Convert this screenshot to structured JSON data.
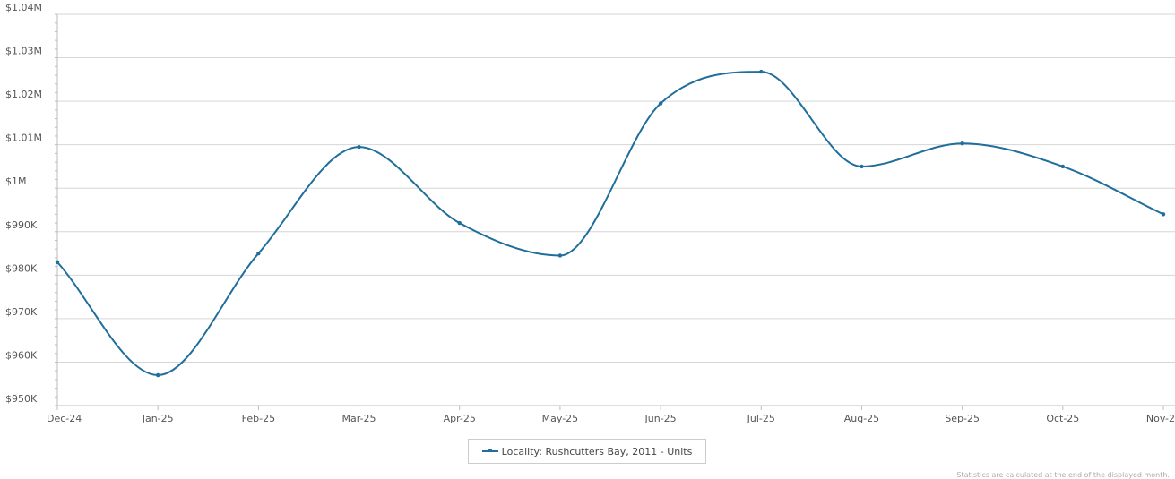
{
  "chart_data": {
    "type": "line",
    "title": "",
    "xlabel": "",
    "ylabel": "",
    "categories": [
      "Dec-24",
      "Jan-25",
      "Feb-25",
      "Mar-25",
      "Apr-25",
      "May-25",
      "Jun-25",
      "Jul-25",
      "Aug-25",
      "Sep-25",
      "Oct-25",
      "Nov-2"
    ],
    "series": [
      {
        "name": "Locality: Rushcutters Bay, 2011 - Units",
        "color": "#1f6e9c",
        "values": [
          983000,
          957000,
          985000,
          1009500,
          992000,
          984500,
          1019500,
          1026800,
          1005000,
          1010300,
          1005000,
          994000
        ]
      }
    ],
    "ylim": [
      950000,
      1040000
    ],
    "yticks": [
      950000,
      960000,
      970000,
      980000,
      990000,
      1000000,
      1010000,
      1020000,
      1030000,
      1040000
    ],
    "ytick_labels": [
      "$950K",
      "$960K",
      "$970K",
      "$980K",
      "$990K",
      "$1M",
      "$1.01M",
      "$1.02M",
      "$1.03M",
      "$1.04M"
    ],
    "grid": true,
    "smooth": true,
    "legend_position": "bottom-center"
  },
  "legend_label": "Locality: Rushcutters Bay, 2011 - Units",
  "footnote": "Statistics are calculated at the end of the displayed month."
}
